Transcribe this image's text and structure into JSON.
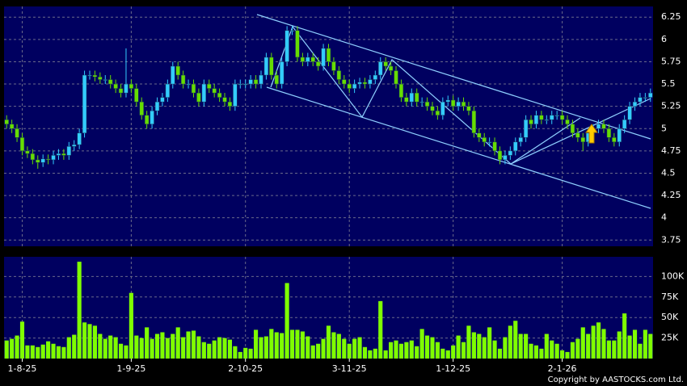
{
  "chart_data": [
    {
      "type": "candlestick",
      "up_color": "#33ccff",
      "down_color": "#66dd00",
      "grid": true,
      "ylim": [
        3.68,
        6.37
      ],
      "yticks": [
        3.75,
        4,
        4.25,
        4.5,
        4.75,
        5,
        5.25,
        5.5,
        5.75,
        6,
        6.25
      ],
      "categories": [
        null,
        null,
        null,
        "1-8-25",
        null,
        null,
        null,
        null,
        null,
        null,
        null,
        null,
        null,
        null,
        null,
        null,
        null,
        null,
        null,
        null,
        null,
        null,
        null,
        null,
        "1-9-25",
        null,
        null,
        null,
        null,
        null,
        null,
        null,
        null,
        null,
        null,
        null,
        null,
        null,
        null,
        null,
        null,
        null,
        null,
        null,
        null,
        null,
        "2-10-25",
        null,
        null,
        null,
        null,
        null,
        null,
        null,
        null,
        null,
        null,
        null,
        null,
        null,
        null,
        null,
        null,
        null,
        null,
        null,
        "3-11-25",
        null,
        null,
        null,
        null,
        null,
        null,
        null,
        null,
        null,
        null,
        null,
        null,
        null,
        null,
        null,
        null,
        null,
        null,
        null,
        "1-12-25",
        null,
        null,
        null,
        null,
        null,
        null,
        null,
        null,
        null,
        null,
        null,
        null,
        null,
        null,
        null,
        null,
        null,
        null,
        null,
        null,
        "2-1-26",
        null,
        null,
        null,
        null,
        null,
        null,
        null,
        null,
        null,
        null,
        null,
        null,
        null,
        null,
        null,
        null,
        null
      ],
      "open": [
        5.1,
        5.05,
        5.0,
        4.9,
        4.75,
        4.72,
        4.65,
        4.62,
        4.66,
        4.65,
        4.7,
        4.72,
        4.7,
        4.8,
        4.82,
        4.95,
        5.6,
        5.6,
        5.58,
        5.55,
        5.55,
        5.5,
        5.45,
        5.4,
        5.5,
        5.45,
        5.3,
        5.15,
        5.05,
        5.2,
        5.3,
        5.35,
        5.5,
        5.7,
        5.6,
        5.5,
        5.5,
        5.4,
        5.3,
        5.5,
        5.45,
        5.4,
        5.35,
        5.3,
        5.25,
        5.5,
        5.5,
        5.5,
        5.55,
        5.5,
        5.6,
        5.8,
        5.6,
        5.5,
        5.75,
        6.1,
        6.1,
        5.8,
        5.75,
        5.8,
        5.75,
        5.7,
        5.9,
        5.75,
        5.65,
        5.55,
        5.5,
        5.45,
        5.5,
        5.52,
        5.5,
        5.55,
        5.6,
        5.75,
        5.7,
        5.65,
        5.5,
        5.35,
        5.3,
        5.4,
        5.3,
        5.3,
        5.25,
        5.2,
        5.15,
        5.3,
        5.32,
        5.25,
        5.3,
        5.25,
        5.2,
        4.95,
        4.9,
        4.85,
        4.85,
        4.75,
        4.65,
        4.7,
        4.75,
        4.85,
        4.9,
        5.1,
        5.05,
        5.15,
        5.1,
        5.1,
        5.15,
        5.15,
        5.1,
        5.05,
        4.95,
        4.9,
        4.85,
        4.95,
        5.0,
        5.05,
        5.0,
        4.9,
        4.85,
        5.0,
        5.1,
        5.25,
        5.3,
        5.35,
        5.35
      ],
      "high": [
        5.15,
        5.1,
        5.05,
        4.95,
        4.8,
        4.77,
        4.7,
        4.71,
        4.71,
        4.75,
        4.77,
        4.77,
        4.85,
        4.87,
        5.0,
        5.65,
        5.65,
        5.65,
        5.63,
        5.6,
        5.6,
        5.55,
        5.5,
        5.9,
        5.55,
        5.5,
        5.35,
        5.2,
        5.25,
        5.35,
        5.4,
        5.55,
        5.75,
        5.75,
        5.65,
        5.55,
        5.55,
        5.45,
        5.55,
        5.55,
        5.5,
        5.45,
        5.4,
        5.35,
        5.55,
        5.55,
        5.55,
        5.6,
        5.6,
        5.65,
        5.85,
        5.85,
        5.65,
        5.8,
        6.15,
        6.15,
        6.15,
        5.85,
        5.85,
        5.85,
        5.8,
        5.95,
        5.95,
        5.8,
        5.7,
        5.6,
        5.55,
        5.55,
        5.57,
        5.57,
        5.6,
        5.65,
        5.8,
        5.8,
        5.75,
        5.7,
        5.55,
        5.4,
        5.45,
        5.45,
        5.35,
        5.35,
        5.3,
        5.25,
        5.35,
        5.37,
        5.37,
        5.35,
        5.35,
        5.3,
        5.25,
        5.0,
        4.95,
        4.9,
        4.9,
        4.8,
        4.75,
        4.8,
        4.9,
        4.95,
        5.15,
        5.15,
        5.2,
        5.2,
        5.15,
        5.2,
        5.2,
        5.2,
        5.15,
        5.1,
        5.0,
        4.95,
        5.0,
        5.05,
        5.1,
        5.1,
        5.05,
        4.95,
        5.05,
        5.15,
        5.3,
        5.35,
        5.4,
        5.4,
        5.45
      ],
      "low": [
        5.0,
        4.95,
        4.85,
        4.7,
        4.67,
        4.6,
        4.55,
        4.57,
        4.6,
        4.6,
        4.65,
        4.65,
        4.65,
        4.75,
        4.77,
        4.9,
        5.55,
        5.53,
        5.5,
        5.5,
        5.45,
        5.4,
        5.35,
        5.35,
        5.4,
        5.25,
        5.1,
        5.0,
        5.0,
        5.15,
        5.25,
        5.3,
        5.45,
        5.55,
        5.45,
        5.45,
        5.35,
        5.25,
        5.25,
        5.4,
        5.35,
        5.3,
        5.25,
        5.2,
        5.2,
        5.45,
        5.45,
        5.45,
        5.45,
        5.45,
        5.55,
        5.55,
        5.45,
        5.45,
        5.7,
        6.05,
        5.75,
        5.7,
        5.7,
        5.7,
        5.65,
        5.65,
        5.7,
        5.6,
        5.5,
        5.45,
        5.4,
        5.4,
        5.45,
        5.45,
        5.45,
        5.5,
        5.55,
        5.65,
        5.6,
        5.45,
        5.3,
        5.25,
        5.25,
        5.25,
        5.25,
        5.2,
        5.15,
        5.1,
        5.1,
        5.25,
        5.2,
        5.2,
        5.2,
        5.15,
        4.9,
        4.85,
        4.8,
        4.8,
        4.7,
        4.6,
        4.6,
        4.65,
        4.7,
        4.8,
        4.85,
        5.0,
        5.0,
        5.05,
        5.05,
        5.05,
        5.1,
        5.05,
        5.0,
        4.9,
        4.85,
        4.75,
        4.8,
        4.9,
        4.95,
        4.95,
        4.85,
        4.8,
        4.8,
        4.95,
        5.05,
        5.2,
        5.25,
        5.3,
        5.3
      ],
      "close": [
        5.05,
        5.0,
        4.9,
        4.75,
        4.72,
        4.65,
        4.62,
        4.66,
        4.65,
        4.7,
        4.72,
        4.7,
        4.8,
        4.82,
        4.95,
        5.6,
        5.6,
        5.58,
        5.55,
        5.55,
        5.5,
        5.45,
        5.4,
        5.5,
        5.45,
        5.3,
        5.15,
        5.05,
        5.2,
        5.3,
        5.35,
        5.5,
        5.7,
        5.6,
        5.5,
        5.5,
        5.4,
        5.3,
        5.5,
        5.45,
        5.4,
        5.35,
        5.3,
        5.25,
        5.5,
        5.5,
        5.5,
        5.55,
        5.5,
        5.6,
        5.8,
        5.6,
        5.5,
        5.75,
        6.1,
        6.1,
        5.8,
        5.75,
        5.8,
        5.75,
        5.7,
        5.9,
        5.75,
        5.65,
        5.55,
        5.5,
        5.45,
        5.5,
        5.52,
        5.5,
        5.55,
        5.6,
        5.75,
        5.7,
        5.65,
        5.5,
        5.35,
        5.3,
        5.4,
        5.3,
        5.3,
        5.25,
        5.2,
        5.15,
        5.3,
        5.32,
        5.25,
        5.3,
        5.25,
        5.2,
        4.95,
        4.9,
        4.85,
        4.85,
        4.75,
        4.65,
        4.7,
        4.75,
        4.85,
        4.9,
        5.1,
        5.05,
        5.15,
        5.1,
        5.1,
        5.15,
        5.15,
        5.1,
        5.05,
        4.95,
        4.9,
        4.85,
        4.95,
        5.0,
        5.05,
        5.0,
        4.9,
        4.85,
        5.0,
        5.1,
        5.25,
        5.3,
        5.35,
        5.35,
        5.4
      ]
    },
    {
      "type": "bar",
      "color": "#7fff00",
      "grid": true,
      "ylim": [
        0,
        124000
      ],
      "yticks": [
        {
          "value": 25000,
          "label": "25K"
        },
        {
          "value": 50000,
          "label": "50K"
        },
        {
          "value": 75000,
          "label": "75K"
        },
        {
          "value": 100000,
          "label": "100K"
        }
      ],
      "values": [
        22000,
        24000,
        28000,
        45000,
        16000,
        16000,
        14000,
        17000,
        21000,
        18000,
        15000,
        14000,
        26000,
        29000,
        118000,
        44000,
        42000,
        40000,
        30000,
        24000,
        28000,
        26000,
        18000,
        16000,
        80000,
        28000,
        25000,
        38000,
        24000,
        30000,
        32000,
        25000,
        30000,
        38000,
        26000,
        33000,
        34000,
        27000,
        20000,
        18000,
        22000,
        26000,
        25000,
        23000,
        15000,
        8000,
        13000,
        12000,
        35000,
        26000,
        27000,
        36000,
        32000,
        31000,
        92000,
        35000,
        35000,
        33000,
        27000,
        16000,
        18000,
        24000,
        40000,
        32000,
        30000,
        24000,
        18000,
        24000,
        26000,
        14000,
        10000,
        12000,
        70000,
        10000,
        20000,
        22000,
        18000,
        20000,
        22000,
        15000,
        36000,
        28000,
        26000,
        20000,
        12000,
        10000,
        16000,
        28000,
        20000,
        40000,
        32000,
        30000,
        26000,
        38000,
        22000,
        12000,
        26000,
        40000,
        46000,
        30000,
        30000,
        18000,
        16000,
        12000,
        30000,
        22000,
        18000,
        10000,
        8000,
        20000,
        24000,
        38000,
        30000,
        40000,
        44000,
        36000,
        22000,
        22000,
        33000,
        55000,
        28000,
        35000,
        18000,
        35000,
        30000
      ]
    }
  ],
  "footer": "Copyright by AASTOCKS.com Ltd."
}
